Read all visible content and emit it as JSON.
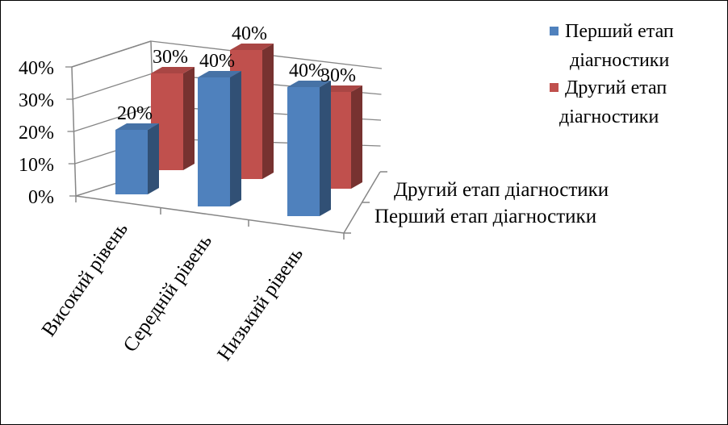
{
  "chart_data": {
    "type": "bar",
    "subtype": "3d-column",
    "categories": [
      "Високий рівень",
      "Середній рівень",
      "Низький рівень"
    ],
    "series": [
      {
        "name": "Перший етап діагностики",
        "values": [
          20,
          40,
          40
        ],
        "labels": [
          "20%",
          "40%",
          "40%"
        ],
        "color": "#4F81BD"
      },
      {
        "name": "Другий етап діагностики",
        "values": [
          30,
          40,
          30
        ],
        "labels": [
          "30%",
          "40%",
          "30%"
        ],
        "color": "#C0504D"
      }
    ],
    "depth_labels": [
      "Другий етап діагностики",
      "Перший етап діагностики"
    ],
    "yticks": [
      "0%",
      "10%",
      "20%",
      "30%",
      "40%"
    ],
    "ylim": [
      0,
      40
    ],
    "grid": true,
    "legend": {
      "position": "top-right",
      "items": [
        {
          "line1": "Перший етап",
          "line2": "діагностики",
          "color": "#4F81BD"
        },
        {
          "line1": "Другий етап",
          "line2": "діагностики",
          "color": "#C0504D"
        }
      ]
    }
  }
}
